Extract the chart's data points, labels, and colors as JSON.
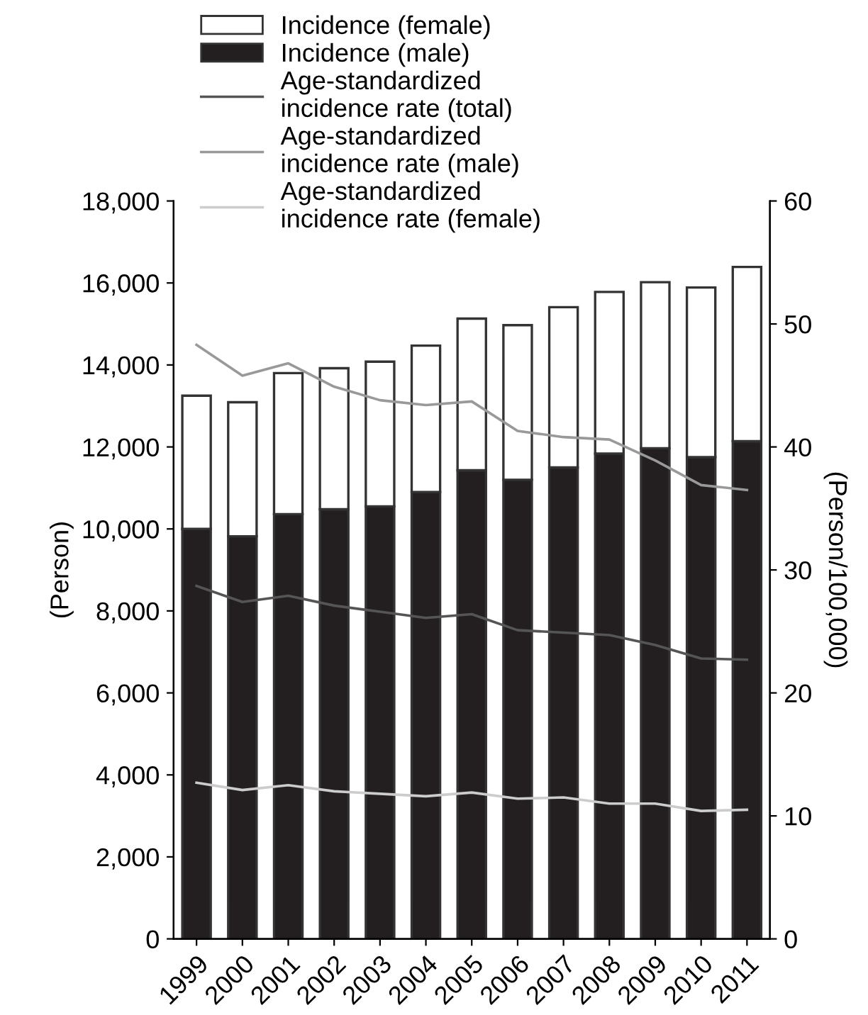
{
  "chart_data": {
    "type": "bar",
    "stacked": true,
    "ylabel": "(Person)",
    "y2label": "(Person/100,000)",
    "categories": [
      "1999",
      "2000",
      "2001",
      "2002",
      "2003",
      "2004",
      "2005",
      "2006",
      "2007",
      "2008",
      "2009",
      "2010",
      "2011"
    ],
    "series": [
      {
        "name": "Incidence (male)",
        "color": "#231f20",
        "values": [
          10000,
          9820,
          10360,
          10480,
          10550,
          10900,
          11430,
          11200,
          11500,
          11840,
          11970,
          11750,
          12140
        ]
      },
      {
        "name": "Incidence (female)",
        "color": "#ffffff",
        "values": [
          3250,
          3270,
          3440,
          3440,
          3530,
          3570,
          3700,
          3770,
          3910,
          3940,
          4050,
          4140,
          4250
        ]
      },
      {
        "name": "Age-standardized incidence rate (total)",
        "type": "line",
        "axis": "y2",
        "color": "#555555",
        "values": [
          28.7,
          27.4,
          27.9,
          27.1,
          26.6,
          26.1,
          26.4,
          25.1,
          24.9,
          24.7,
          23.9,
          22.8,
          22.7
        ]
      },
      {
        "name": "Age-standardized incidence rate (male)",
        "type": "line",
        "axis": "y2",
        "color": "#999999",
        "values": [
          48.3,
          45.8,
          46.8,
          44.9,
          43.8,
          43.4,
          43.7,
          41.3,
          40.8,
          40.6,
          38.9,
          36.9,
          36.5
        ]
      },
      {
        "name": "Age-standardized incidence rate (female)",
        "type": "line",
        "axis": "y2",
        "color": "#cccccc",
        "values": [
          12.7,
          12.1,
          12.5,
          12.0,
          11.8,
          11.6,
          11.9,
          11.4,
          11.5,
          11.0,
          11.0,
          10.4,
          10.5
        ]
      }
    ],
    "ylim": [
      0,
      18000
    ],
    "yticks": [
      {
        "value": 0,
        "label": "0"
      },
      {
        "value": 2000,
        "label": "2,000"
      },
      {
        "value": 4000,
        "label": "4,000"
      },
      {
        "value": 6000,
        "label": "6,000"
      },
      {
        "value": 8000,
        "label": "8,000"
      },
      {
        "value": 10000,
        "label": "10,000"
      },
      {
        "value": 12000,
        "label": "12,000"
      },
      {
        "value": 14000,
        "label": "14,000"
      },
      {
        "value": 16000,
        "label": "16,000"
      },
      {
        "value": 18000,
        "label": "18,000"
      }
    ],
    "y2lim": [
      0,
      60
    ],
    "y2ticks": [
      0,
      10,
      20,
      30,
      40,
      50,
      60
    ],
    "legend": "top",
    "grid": false,
    "marker": "none",
    "line_style": "solid"
  }
}
